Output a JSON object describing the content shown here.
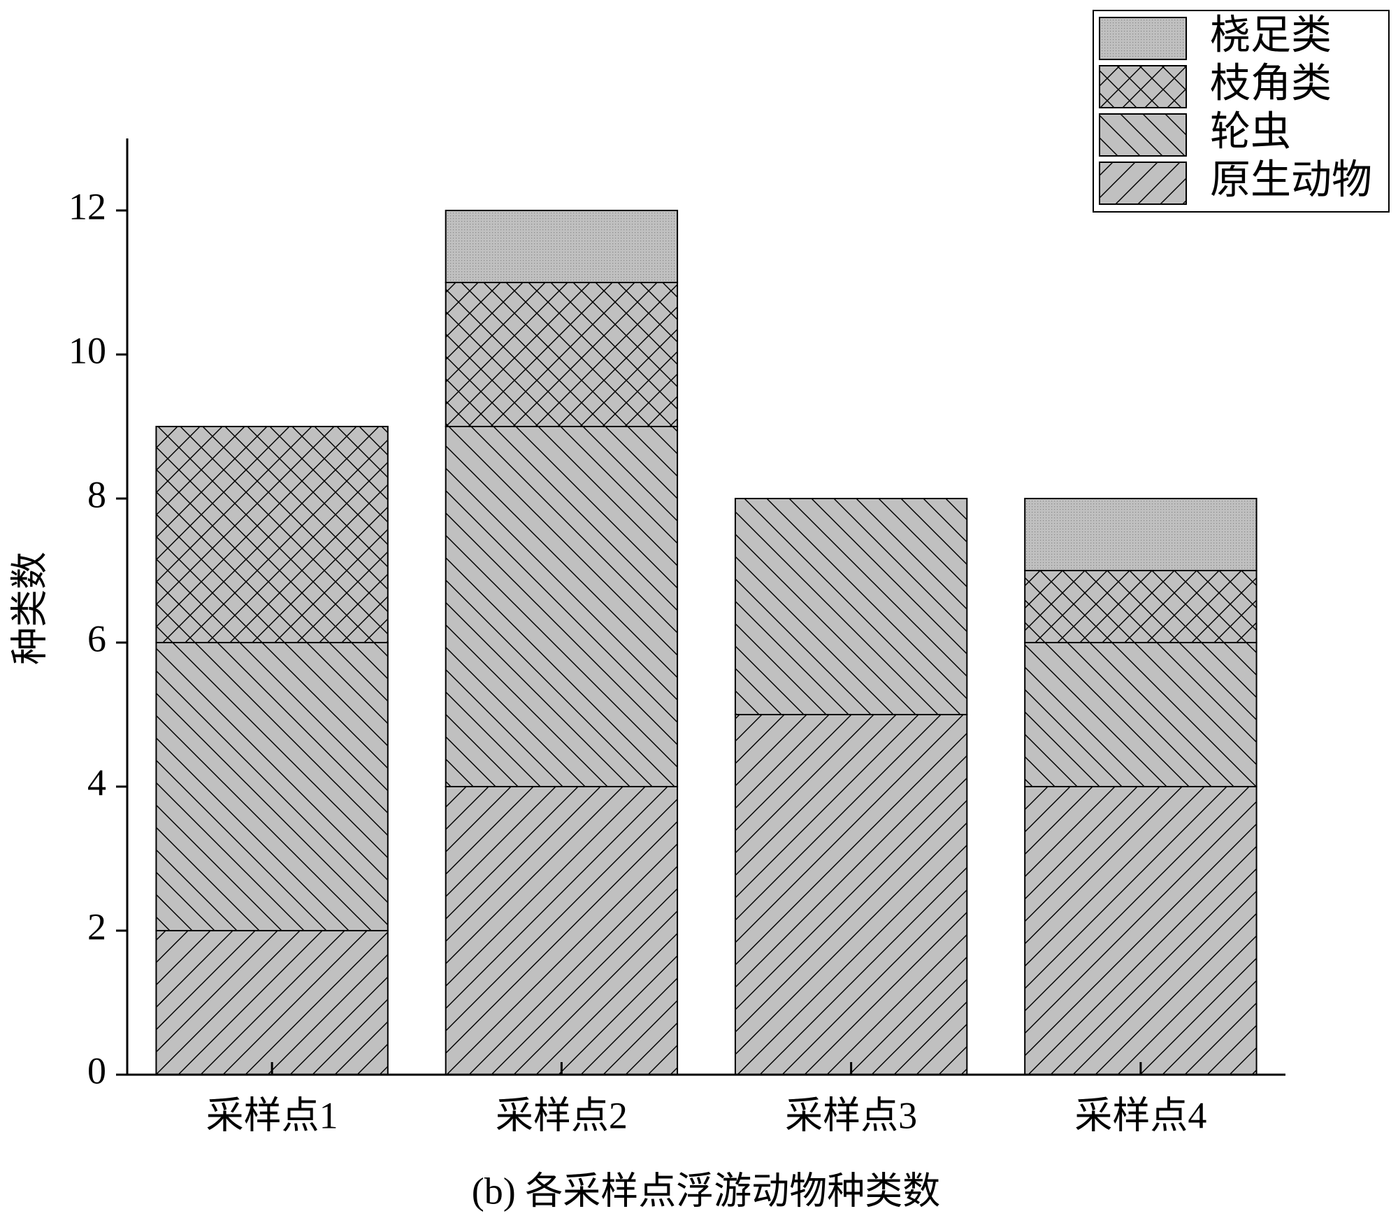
{
  "chart_data": {
    "type": "stacked_bar",
    "title": "(b) 各采样点浮游动物种类数",
    "y_label": "种类数",
    "categories": [
      "采样点1",
      "采样点2",
      "采样点3",
      "采样点4"
    ],
    "series": [
      {
        "name": "原生动物",
        "color": "#c0c0c0",
        "hatch": "/",
        "values": [
          2,
          4,
          5,
          4
        ]
      },
      {
        "name": "轮虫",
        "color": "#c0c0c0",
        "hatch": "\\",
        "values": [
          4,
          5,
          3,
          2
        ]
      },
      {
        "name": "枝角类",
        "color": "#c0c0c0",
        "hatch": "x",
        "values": [
          3,
          2,
          0,
          1
        ]
      },
      {
        "name": "桡足类",
        "color": "#c0c0c0",
        "hatch": ".",
        "values": [
          0,
          1,
          0,
          1
        ]
      }
    ],
    "ylim": [
      0,
      13
    ],
    "yticks": [
      0,
      2,
      4,
      6,
      8,
      10,
      12
    ],
    "legend": "top-right"
  }
}
